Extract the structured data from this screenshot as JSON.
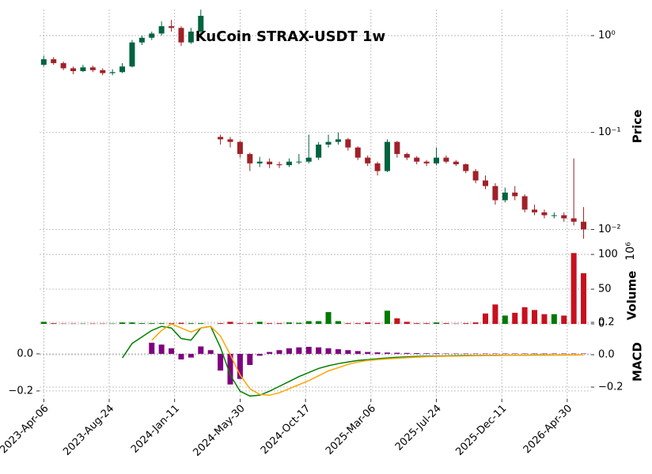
{
  "chart_data": {
    "type": "candlestick",
    "title": "KuCoin STRAX-USDT 1w",
    "ylabel": "Price",
    "log_scale": true,
    "grid": true,
    "up_color": "#006340",
    "down_color": "#a02128",
    "xlim": [
      "2023-03-28",
      "2026-06-20"
    ],
    "xticks": [
      {
        "value": "2023-04-06",
        "label": "2023-Apr-06"
      },
      {
        "value": "2023-08-24",
        "label": "2023-Aug-24"
      },
      {
        "value": "2024-01-11",
        "label": "2024-Jan-11"
      },
      {
        "value": "2024-05-30",
        "label": "2024-May-30"
      },
      {
        "value": "2024-10-17",
        "label": "2024-Oct-17"
      },
      {
        "value": "2025-03-06",
        "label": "2025-Mar-06"
      },
      {
        "value": "2025-07-24",
        "label": "2025-Jul-24"
      },
      {
        "value": "2025-12-11",
        "label": "2025-Dec-11"
      },
      {
        "value": "2026-04-30",
        "label": "2026-Apr-30"
      }
    ],
    "ylim": [
      0.0076,
      1.86
    ],
    "yticks": [
      {
        "value": 1,
        "label": "10⁰"
      },
      {
        "value": 0.1,
        "label": "10⁻¹"
      },
      {
        "value": 0.01,
        "label": "10⁻²"
      }
    ],
    "x": [
      "2023-04-06",
      "2023-04-27",
      "2023-05-18",
      "2023-06-08",
      "2023-06-29",
      "2023-07-20",
      "2023-08-10",
      "2023-08-31",
      "2023-09-21",
      "2023-10-12",
      "2023-11-02",
      "2023-11-23",
      "2023-12-14",
      "2024-01-04",
      "2024-01-25",
      "2024-02-15",
      "2024-03-07",
      "2024-03-28",
      "2024-04-18",
      "2024-05-09",
      "2024-05-30",
      "2024-06-20",
      "2024-07-11",
      "2024-08-01",
      "2024-08-22",
      "2024-09-12",
      "2024-10-03",
      "2024-10-24",
      "2024-11-14",
      "2024-12-05",
      "2024-12-26",
      "2025-01-16",
      "2025-02-06",
      "2025-02-27",
      "2025-03-20",
      "2025-04-10",
      "2025-05-01",
      "2025-05-22",
      "2025-06-12",
      "2025-07-03",
      "2025-07-24",
      "2025-08-14",
      "2025-09-04",
      "2025-09-25",
      "2025-10-16",
      "2025-11-06",
      "2025-11-27",
      "2025-12-18",
      "2026-01-08",
      "2026-01-29",
      "2026-02-19",
      "2026-03-12",
      "2026-04-02",
      "2026-04-23",
      "2026-05-14",
      "2026-06-04"
    ],
    "open": [
      0.5,
      0.57,
      0.52,
      0.46,
      0.43,
      0.47,
      0.44,
      0.41,
      0.42,
      0.48,
      0.85,
      0.95,
      1.05,
      1.25,
      1.2,
      0.85,
      1.1,
      null,
      0.09,
      0.085,
      0.08,
      0.06,
      0.048,
      0.05,
      0.047,
      0.046,
      0.05,
      0.05,
      0.055,
      0.075,
      0.08,
      0.085,
      0.07,
      0.055,
      0.048,
      0.04,
      0.08,
      0.06,
      0.055,
      0.05,
      0.048,
      0.055,
      0.05,
      0.047,
      0.04,
      0.032,
      0.028,
      0.02,
      0.024,
      0.022,
      0.016,
      0.015,
      0.014,
      0.014,
      0.013,
      0.012
    ],
    "high": [
      0.62,
      0.6,
      0.54,
      0.48,
      0.5,
      0.49,
      0.46,
      0.45,
      0.52,
      0.9,
      1.0,
      1.1,
      1.4,
      1.45,
      1.25,
      1.2,
      1.85,
      null,
      0.095,
      0.09,
      0.082,
      0.062,
      0.056,
      0.054,
      0.05,
      0.054,
      0.06,
      0.095,
      0.08,
      0.095,
      0.1,
      0.088,
      0.072,
      0.058,
      0.05,
      0.085,
      0.082,
      0.062,
      0.057,
      0.052,
      0.07,
      0.058,
      0.052,
      0.048,
      0.042,
      0.036,
      0.03,
      0.027,
      0.028,
      0.023,
      0.018,
      0.016,
      0.015,
      0.015,
      0.054,
      0.017
    ],
    "low": [
      0.48,
      0.5,
      0.44,
      0.4,
      0.42,
      0.42,
      0.39,
      0.39,
      0.41,
      0.47,
      0.8,
      0.9,
      1.0,
      1.1,
      0.78,
      0.82,
      1.05,
      null,
      0.075,
      0.07,
      0.055,
      0.04,
      0.044,
      0.043,
      0.043,
      0.044,
      0.047,
      0.048,
      0.052,
      0.07,
      0.075,
      0.065,
      0.052,
      0.045,
      0.036,
      0.039,
      0.055,
      0.052,
      0.047,
      0.045,
      0.046,
      0.048,
      0.045,
      0.038,
      0.03,
      0.026,
      0.018,
      0.019,
      0.02,
      0.015,
      0.014,
      0.013,
      0.013,
      0.012,
      0.011,
      0.008
    ],
    "close": [
      0.57,
      0.52,
      0.46,
      0.43,
      0.47,
      0.44,
      0.41,
      0.42,
      0.48,
      0.85,
      0.95,
      1.05,
      1.25,
      1.2,
      0.85,
      1.1,
      1.6,
      null,
      0.085,
      0.08,
      0.06,
      0.048,
      0.05,
      0.047,
      0.046,
      0.05,
      0.05,
      0.055,
      0.075,
      0.08,
      0.085,
      0.07,
      0.055,
      0.048,
      0.04,
      0.08,
      0.06,
      0.055,
      0.05,
      0.048,
      0.055,
      0.05,
      0.047,
      0.04,
      0.032,
      0.028,
      0.02,
      0.024,
      0.022,
      0.016,
      0.015,
      0.014,
      0.014,
      0.013,
      0.012,
      0.01
    ],
    "volume": {
      "ylabel": "Volume",
      "offset_label": "10⁶",
      "up_color": "#007a00",
      "down_color": "#c8101e",
      "ylim": [
        0,
        116
      ],
      "yticks": [
        0,
        50,
        100
      ],
      "values": [
        3,
        1,
        0.5,
        0.5,
        0.5,
        0.5,
        0.5,
        0.5,
        2,
        2,
        1,
        1,
        1,
        1,
        1.5,
        1,
        1,
        null,
        1,
        3,
        1,
        1,
        3,
        1,
        1,
        2,
        1.5,
        4,
        4,
        17,
        4,
        1,
        1,
        2,
        1,
        19,
        8,
        3,
        1,
        1,
        2,
        1,
        0.5,
        1,
        2,
        15,
        28,
        12,
        16,
        24,
        20,
        14,
        14,
        12,
        102,
        73
      ]
    },
    "macd": {
      "ylabel": "MACD",
      "ylim": [
        -0.243,
        0.17
      ],
      "yticks": [
        {
          "value": 0,
          "label": "0.0"
        },
        {
          "value": -0.2,
          "label": "−0.2"
        }
      ],
      "y2lim": [
        -0.273,
        0.2
      ],
      "y2ticks": [
        0.2,
        {
          "value": 0,
          "label": "0.0"
        },
        {
          "value": -0.2,
          "label": "−0.2"
        }
      ],
      "histogram": {
        "color": "#800080",
        "axis": "y",
        "values": [
          null,
          null,
          null,
          null,
          null,
          null,
          null,
          null,
          null,
          null,
          null,
          0.06,
          0.05,
          0.03,
          -0.03,
          -0.02,
          0.04,
          0.02,
          -0.09,
          -0.165,
          -0.135,
          -0.06,
          -0.01,
          0.01,
          0.02,
          0.03,
          0.035,
          0.038,
          0.035,
          0.03,
          0.025,
          0.02,
          0.015,
          0.01,
          0.008,
          0.007,
          0.006,
          0.005,
          0.004,
          0.003,
          0.003,
          0.002,
          0.002,
          0.002,
          0.002,
          0.002,
          0.002,
          0.002,
          0.002,
          0.002,
          0.002,
          0.002,
          0.002,
          0.002,
          0.002,
          0.002
        ]
      },
      "series": [
        {
          "color": "#008000",
          "axis": "y2",
          "values": [
            null,
            null,
            null,
            null,
            null,
            null,
            null,
            null,
            -0.02,
            0.07,
            0.11,
            0.15,
            0.175,
            0.165,
            0.1,
            0.09,
            0.165,
            0.175,
            0.045,
            -0.125,
            -0.225,
            -0.255,
            -0.25,
            -0.225,
            -0.195,
            -0.165,
            -0.135,
            -0.11,
            -0.085,
            -0.068,
            -0.055,
            -0.045,
            -0.035,
            -0.03,
            -0.025,
            -0.02,
            -0.016,
            -0.013,
            -0.011,
            -0.009,
            -0.008,
            -0.007,
            -0.006,
            -0.005,
            -0.005,
            -0.004,
            -0.004,
            -0.003,
            -0.003,
            -0.003,
            -0.002,
            -0.002,
            -0.002,
            -0.002,
            -0.001,
            -0.001
          ]
        },
        {
          "color": "#ffa500",
          "axis": "y2",
          "values": [
            null,
            null,
            null,
            null,
            null,
            null,
            null,
            null,
            null,
            null,
            null,
            0.09,
            0.15,
            0.19,
            0.165,
            0.14,
            0.165,
            0.175,
            0.115,
            0.0,
            -0.125,
            -0.21,
            -0.245,
            -0.25,
            -0.235,
            -0.21,
            -0.185,
            -0.16,
            -0.13,
            -0.1,
            -0.08,
            -0.06,
            -0.045,
            -0.035,
            -0.03,
            -0.026,
            -0.022,
            -0.018,
            -0.015,
            -0.012,
            -0.01,
            -0.009,
            -0.008,
            -0.007,
            -0.006,
            -0.005,
            -0.005,
            -0.004,
            -0.004,
            -0.003,
            -0.003,
            -0.003,
            -0.002,
            -0.002,
            -0.002,
            -0.001
          ]
        }
      ]
    }
  }
}
